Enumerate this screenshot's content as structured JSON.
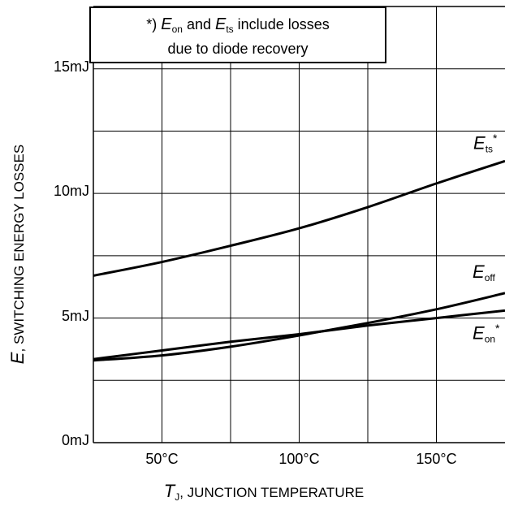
{
  "chart_data": {
    "type": "line",
    "xlabel_symbol": "T",
    "xlabel_sub": "J",
    "xlabel_rest": ", JUNCTION TEMPERATURE",
    "ylabel_symbol": "E",
    "ylabel_rest": ", SWITCHING ENERGY LOSSES",
    "xlim": [
      25,
      175
    ],
    "ylim": [
      0,
      17.5
    ],
    "x_ticks": [
      {
        "value": 50,
        "label": "50°C"
      },
      {
        "value": 100,
        "label": "100°C"
      },
      {
        "value": 150,
        "label": "150°C"
      }
    ],
    "y_ticks": [
      {
        "value": 0,
        "label": "0mJ"
      },
      {
        "value": 5,
        "label": "5mJ"
      },
      {
        "value": 10,
        "label": "10mJ"
      },
      {
        "value": 15,
        "label": "15mJ"
      }
    ],
    "grid": true,
    "series": [
      {
        "name": "E_ts*",
        "symbol": "E",
        "sub": "ts",
        "sup": "*",
        "x": [
          25,
          50,
          75,
          100,
          125,
          150,
          175
        ],
        "y": [
          6.7,
          7.25,
          7.9,
          8.6,
          9.45,
          10.4,
          11.3
        ]
      },
      {
        "name": "E_off",
        "symbol": "E",
        "sub": "off",
        "sup": "",
        "x": [
          25,
          50,
          75,
          100,
          125,
          150,
          175
        ],
        "y": [
          3.3,
          3.5,
          3.85,
          4.3,
          4.8,
          5.35,
          6.0
        ]
      },
      {
        "name": "E_on*",
        "symbol": "E",
        "sub": "on",
        "sup": "*",
        "x": [
          25,
          50,
          75,
          100,
          125,
          150,
          175
        ],
        "y": [
          3.35,
          3.7,
          4.05,
          4.35,
          4.7,
          5.0,
          5.3
        ]
      }
    ]
  },
  "note": {
    "prefix": "*) ",
    "sym1": "E",
    "sub1": "on",
    "mid": " and ",
    "sym2": "E",
    "sub2": "ts",
    "suffix": " include losses",
    "line2": "due to diode recovery"
  }
}
